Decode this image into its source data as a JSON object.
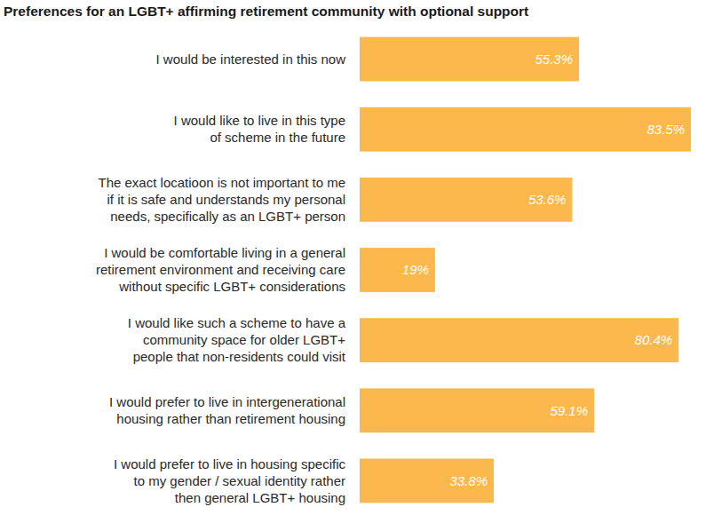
{
  "chart_data": {
    "type": "bar",
    "title": "Preferences for an LGBT+ affirming retirement community with optional support",
    "orientation": "horizontal",
    "categories": [
      "I would be interested in this now",
      "I would like to live in this type\nof scheme in the future",
      "The exact locatioon is not important to me\nif it is safe and understands my personal\nneeds, specifically as an LGBT+ person",
      "I would be comfortable living in a general\nretirement environment and receiving care\nwithout specific LGBT+ considerations",
      "I would like such a scheme to have a\ncommunity space for older LGBT+\npeople that non-residents could visit",
      "I would prefer to live in intergenerational\nhousing rather than retirement housing",
      "I would prefer to live in housing specific\nto my gender / sexual identity rather\nthen general LGBT+ housing"
    ],
    "values": [
      55.3,
      83.5,
      53.6,
      19,
      80.4,
      59.1,
      33.8
    ],
    "value_labels": [
      "55.3%",
      "83.5%",
      "53.6%",
      "19%",
      "80.4%",
      "59.1%",
      "33.8%"
    ],
    "color": "#fbb84c",
    "data_labels": true,
    "tick_labels": "y"
  }
}
